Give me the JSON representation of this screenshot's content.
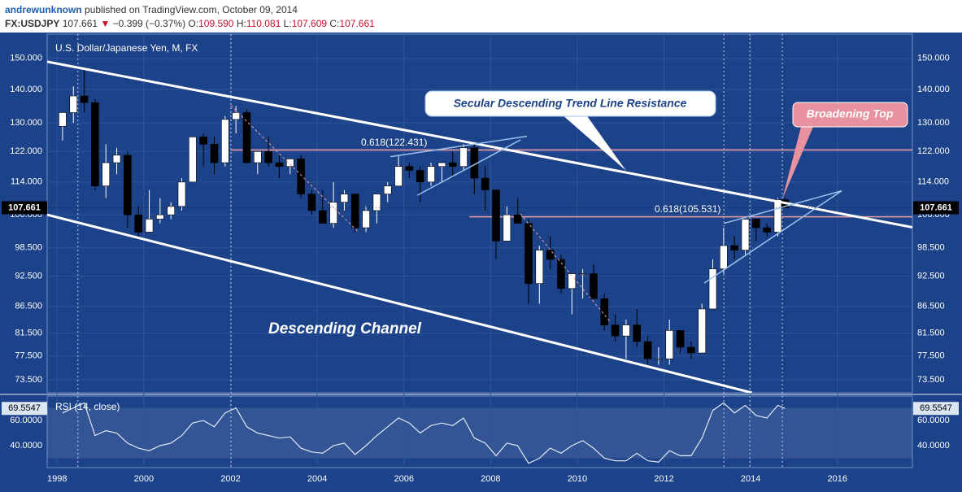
{
  "header": {
    "author": "andrewunknown",
    "published": "published on TradingView.com, October 09, 2014",
    "symbol": "FX:USDJPY",
    "last": "107.661",
    "arrow": "▼",
    "change": "−0.399 (−0.37%)",
    "o_label": "O:",
    "o": "109.590",
    "h_label": "H:",
    "h": "110.081",
    "l_label": "L:",
    "l": "107.609",
    "c_label": "C:",
    "c": "107.661"
  },
  "chart_data": [
    {
      "type": "candlestick",
      "title": "U.S. Dollar/Japanese Yen, M, FX",
      "log_scale": true,
      "grid": true,
      "background": "#1c4289",
      "up_color": "#ffffff",
      "down_color": "#000000",
      "x": [
        1998.125,
        1998.375,
        1998.625,
        1998.875,
        1999.125,
        1999.375,
        1999.625,
        1999.875,
        2000.125,
        2000.375,
        2000.625,
        2000.875,
        2001.125,
        2001.375,
        2001.625,
        2001.875,
        2002.125,
        2002.375,
        2002.625,
        2002.875,
        2003.125,
        2003.375,
        2003.625,
        2003.875,
        2004.125,
        2004.375,
        2004.625,
        2004.875,
        2005.125,
        2005.375,
        2005.625,
        2005.875,
        2006.125,
        2006.375,
        2006.625,
        2006.875,
        2007.125,
        2007.375,
        2007.625,
        2007.875,
        2008.125,
        2008.375,
        2008.625,
        2008.875,
        2009.125,
        2009.375,
        2009.625,
        2009.875,
        2010.125,
        2010.375,
        2010.625,
        2010.875,
        2011.125,
        2011.375,
        2011.625,
        2011.875,
        2012.125,
        2012.375,
        2012.625,
        2012.875,
        2013.125,
        2013.375,
        2013.625,
        2013.875,
        2014.125,
        2014.375,
        2014.625,
        2014.792
      ],
      "open": [
        129,
        133,
        138,
        136,
        113,
        119,
        121,
        106,
        102,
        105,
        106,
        108,
        114,
        126,
        124,
        119,
        131,
        133,
        119,
        122,
        119,
        118,
        120,
        111,
        107,
        104,
        109,
        111,
        103,
        107,
        111,
        113,
        118,
        117,
        114,
        118,
        119,
        118,
        123,
        115,
        112,
        100,
        106,
        104,
        91,
        98,
        96,
        90,
        93,
        93,
        88,
        83,
        81,
        83,
        80,
        77,
        77,
        82,
        79,
        78,
        86,
        94,
        99,
        98,
        105,
        103,
        102,
        109.59
      ],
      "high": [
        133,
        141,
        147,
        137,
        124,
        123,
        122,
        108,
        112,
        110,
        109,
        115,
        126,
        127,
        126,
        132,
        135,
        134,
        122,
        126,
        121,
        120,
        121,
        112,
        112,
        114,
        112,
        111,
        108,
        111,
        114,
        121,
        119,
        118,
        119,
        119,
        122,
        124,
        124,
        118,
        112,
        108,
        110,
        105,
        99,
        101,
        97,
        93,
        94,
        95,
        89,
        85,
        84,
        86,
        81,
        79,
        84,
        82,
        80,
        87,
        96,
        103,
        101,
        105,
        105,
        104,
        110,
        110.081
      ],
      "low": [
        125,
        130,
        133,
        112,
        110,
        116,
        103,
        101,
        102,
        104,
        105,
        107,
        114,
        118,
        116,
        118,
        127,
        119,
        116,
        118,
        115,
        116,
        110,
        106,
        104,
        103,
        107,
        102,
        102,
        104,
        109,
        113,
        115,
        109,
        113,
        114,
        115,
        117,
        111,
        107,
        96,
        100,
        104,
        87,
        87,
        94,
        89,
        85,
        88,
        88,
        82,
        80,
        77,
        79,
        76,
        76,
        76,
        78,
        77,
        78,
        86,
        93,
        96,
        97,
        100,
        101,
        101,
        107.609
      ],
      "close": [
        133,
        138,
        136,
        113,
        119,
        121,
        106,
        102,
        105,
        106,
        108,
        114,
        126,
        124,
        119,
        131,
        133,
        119,
        122,
        119,
        118,
        120,
        111,
        107,
        104,
        109,
        111,
        103,
        107,
        111,
        113,
        118,
        117,
        114,
        118,
        119,
        118,
        123,
        115,
        112,
        100,
        106,
        104,
        91,
        98,
        96,
        90,
        93,
        93,
        88,
        83,
        81,
        83,
        80,
        77,
        77,
        82,
        79,
        78,
        86,
        94,
        99,
        98,
        105,
        103,
        102,
        109.6,
        107.661
      ],
      "xlim": [
        1997.77,
        2017.73
      ],
      "xticks": [
        {
          "value": 1998,
          "label": "1998"
        },
        2000,
        2002,
        2004,
        2006,
        2008,
        2010,
        2012,
        2014,
        2016
      ],
      "ylim": [
        71.4,
        158.3
      ],
      "yticks": [
        {
          "value": 150,
          "label": "150.000"
        },
        {
          "value": 140,
          "label": "140.000"
        },
        {
          "value": 130,
          "label": "130.000"
        },
        {
          "value": 122,
          "label": "122.000"
        },
        {
          "value": 114,
          "label": "114.000"
        },
        {
          "value": 106,
          "label": "106.000"
        },
        {
          "value": 98.5,
          "label": "98.500"
        },
        {
          "value": 92.5,
          "label": "92.500"
        },
        {
          "value": 86.5,
          "label": "86.500"
        },
        {
          "value": 81.5,
          "label": "81.500"
        },
        {
          "value": 77.5,
          "label": "77.500"
        },
        {
          "value": 73.5,
          "label": "73.500"
        }
      ],
      "last_price": {
        "value": 107.661,
        "label": "107.661"
      },
      "fib_levels": [
        {
          "value": 122.431,
          "label": "0.618(122.431)",
          "x_start": 2002.01,
          "color": "#f2a0a8"
        },
        {
          "value": 105.531,
          "label": "0.618(105.531)",
          "x_start": 2007.51,
          "color": "#f2a0a8"
        }
      ],
      "trend_lines": [
        {
          "x": [
            1997.77,
            2017.73
          ],
          "y": [
            148.9,
            103.1
          ],
          "color": "#ffffff",
          "width": 3,
          "dashed": false
        },
        {
          "x": [
            1997.77,
            2014.03
          ],
          "y": [
            106,
            71.4
          ],
          "color": "#ffffff",
          "width": 3,
          "dashed": false
        },
        {
          "x": [
            2005.69,
            2008.84
          ],
          "y": [
            120.6,
            126.2
          ],
          "color": "#9cc3ee",
          "width": 1.5,
          "dashed": false
        },
        {
          "x": [
            2006.31,
            2008.69
          ],
          "y": [
            110.7,
            125.2
          ],
          "color": "#9cc3ee",
          "width": 1.5,
          "dashed": false
        },
        {
          "x": [
            2013.38,
            2016.1
          ],
          "y": [
            104,
            111.8
          ],
          "color": "#9cc3ee",
          "width": 1.5,
          "dashed": false
        },
        {
          "x": [
            2012.93,
            2016.1
          ],
          "y": [
            91.1,
            111.8
          ],
          "color": "#9cc3ee",
          "width": 1.5,
          "dashed": false
        },
        {
          "x": [
            2002.01,
            2004.94
          ],
          "y": [
            135.1,
            102.1
          ],
          "color": "#f2a0a8",
          "width": 1,
          "dashed": true
        },
        {
          "x": [
            2008.69,
            2010.75
          ],
          "y": [
            106.2,
            83.7
          ],
          "color": "#f2a0a8",
          "width": 1,
          "dashed": true
        }
      ],
      "vlines": [
        1998.48,
        2002.01,
        2013.38,
        2013.98,
        2014.73
      ],
      "annotations": [
        "Secular Descending Trend Line Resistance",
        "Broadening Top",
        "Descending Channel"
      ]
    },
    {
      "type": "line",
      "title": "RSI (14, close)",
      "color": "#dfe8f6",
      "band": [
        30,
        70
      ],
      "x": [
        1998.125,
        1998.375,
        1998.625,
        1998.875,
        1999.125,
        1999.375,
        1999.625,
        1999.875,
        2000.125,
        2000.375,
        2000.625,
        2000.875,
        2001.125,
        2001.375,
        2001.625,
        2001.875,
        2002.125,
        2002.375,
        2002.625,
        2002.875,
        2003.125,
        2003.375,
        2003.625,
        2003.875,
        2004.125,
        2004.375,
        2004.625,
        2004.875,
        2005.125,
        2005.375,
        2005.625,
        2005.875,
        2006.125,
        2006.375,
        2006.625,
        2006.875,
        2007.125,
        2007.375,
        2007.625,
        2007.875,
        2008.125,
        2008.375,
        2008.625,
        2008.875,
        2009.125,
        2009.375,
        2009.625,
        2009.875,
        2010.125,
        2010.375,
        2010.625,
        2010.875,
        2011.125,
        2011.375,
        2011.625,
        2011.875,
        2012.125,
        2012.375,
        2012.625,
        2012.875,
        2013.125,
        2013.375,
        2013.625,
        2013.875,
        2014.125,
        2014.375,
        2014.625,
        2014.792
      ],
      "values": [
        66,
        70,
        74,
        48,
        52,
        50,
        42,
        38,
        36,
        40,
        42,
        48,
        58,
        60,
        55,
        66,
        70,
        55,
        50,
        48,
        46,
        47,
        38,
        35,
        34,
        40,
        42,
        33,
        40,
        48,
        55,
        62,
        58,
        50,
        56,
        58,
        56,
        62,
        46,
        42,
        32,
        42,
        40,
        26,
        30,
        38,
        34,
        40,
        44,
        38,
        30,
        28,
        28,
        34,
        28,
        27,
        36,
        32,
        32,
        46,
        68,
        74,
        66,
        72,
        64,
        62,
        72,
        69.5547
      ],
      "ylim": [
        22.6,
        79.4
      ],
      "yticks": [
        {
          "value": 60,
          "label": "60.0000"
        },
        {
          "value": 40,
          "label": "40.0000"
        }
      ],
      "last_value": {
        "value": 69.5547,
        "label": "69.5547"
      }
    }
  ]
}
